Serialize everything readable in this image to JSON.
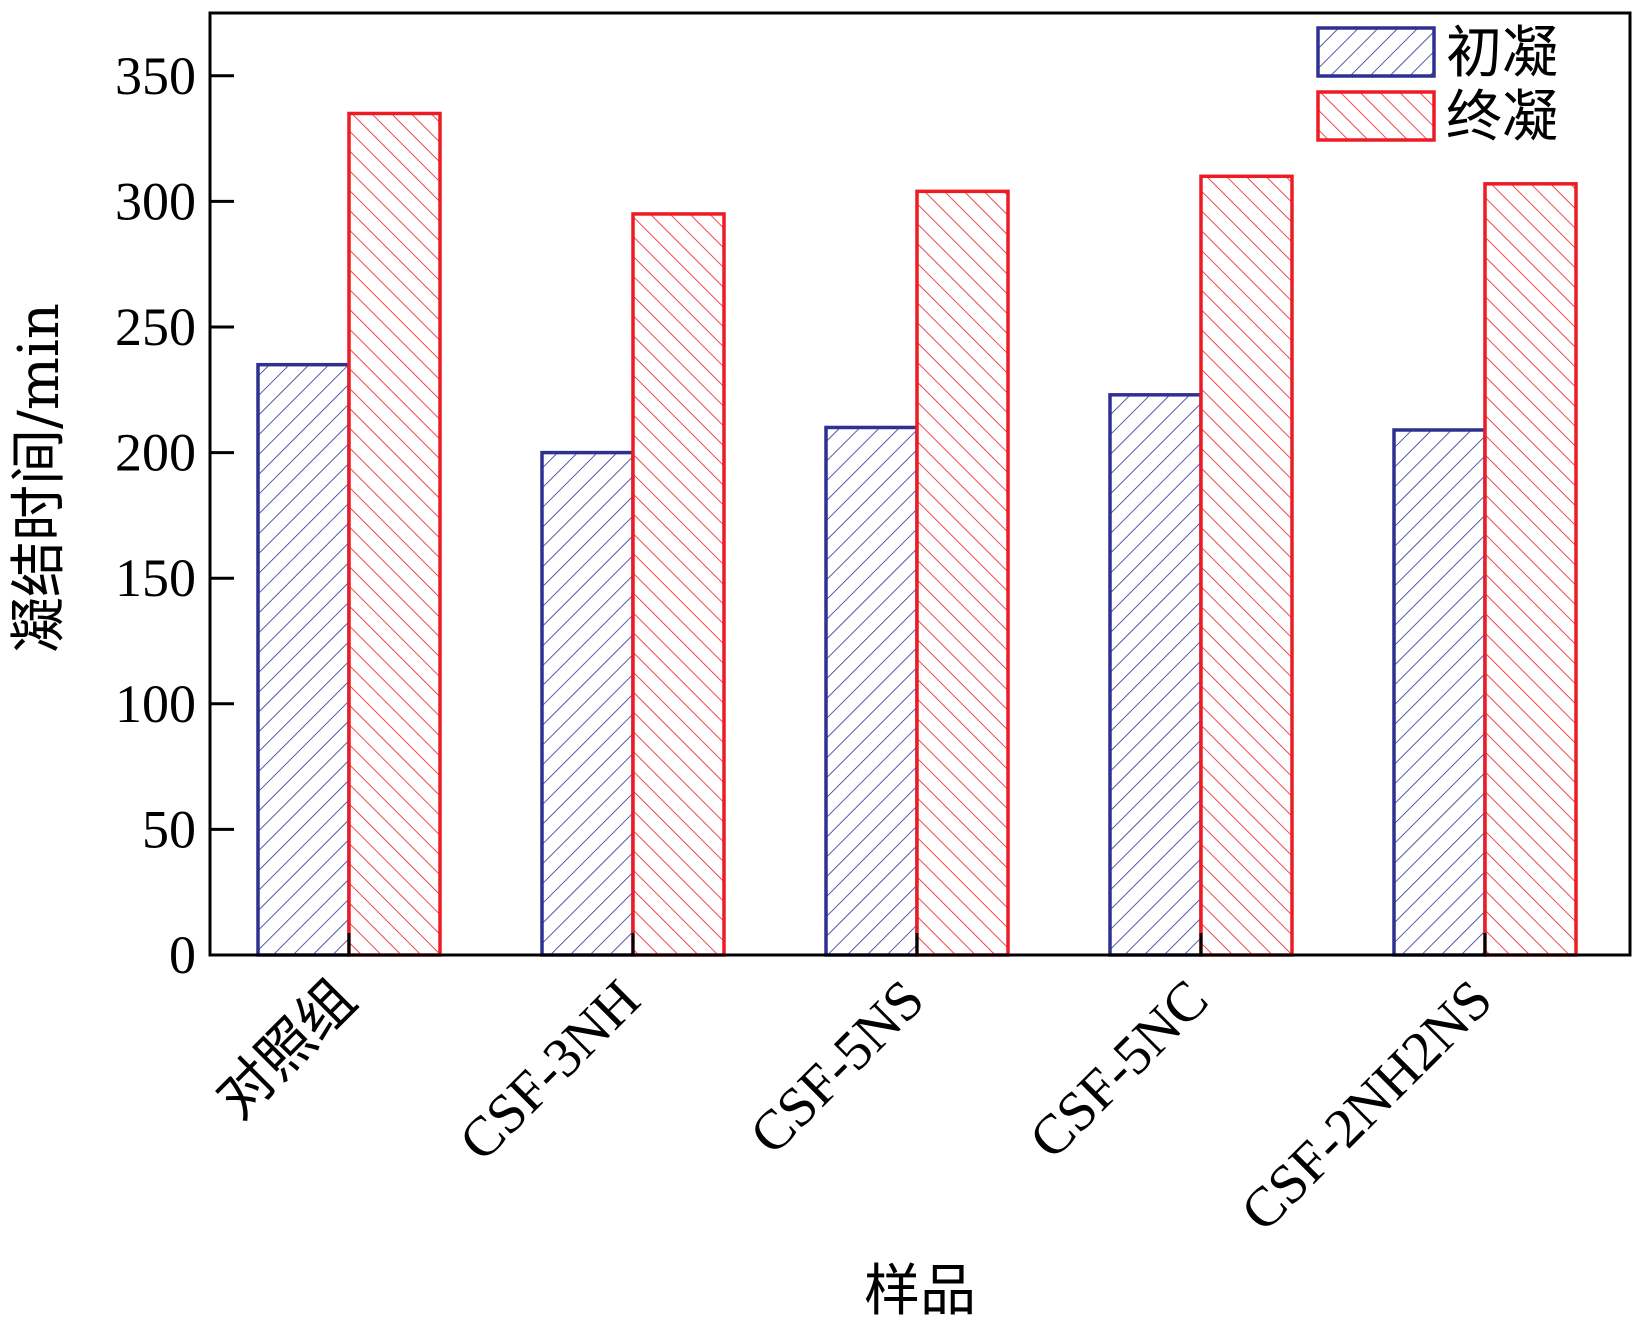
{
  "chart_data": {
    "type": "bar",
    "title": "",
    "xlabel": "样品",
    "ylabel": "凝结时间/min",
    "categories": [
      "对照组",
      "CSF-3NH",
      "CSF-5NS",
      "CSF-5NC",
      "CSF-2NH2NS"
    ],
    "series": [
      {
        "name": "初凝",
        "values": [
          235,
          200,
          210,
          223,
          209
        ],
        "color": "#2e3192",
        "hatch": "diagonal-up"
      },
      {
        "name": "终凝",
        "values": [
          335,
          295,
          304,
          310,
          307
        ],
        "color": "#ed1c24",
        "hatch": "diagonal-down"
      }
    ],
    "ylim": [
      0,
      375
    ],
    "yticks": [
      0,
      50,
      100,
      150,
      200,
      250,
      300,
      350
    ],
    "legend_position": "top-right",
    "grid": false
  }
}
